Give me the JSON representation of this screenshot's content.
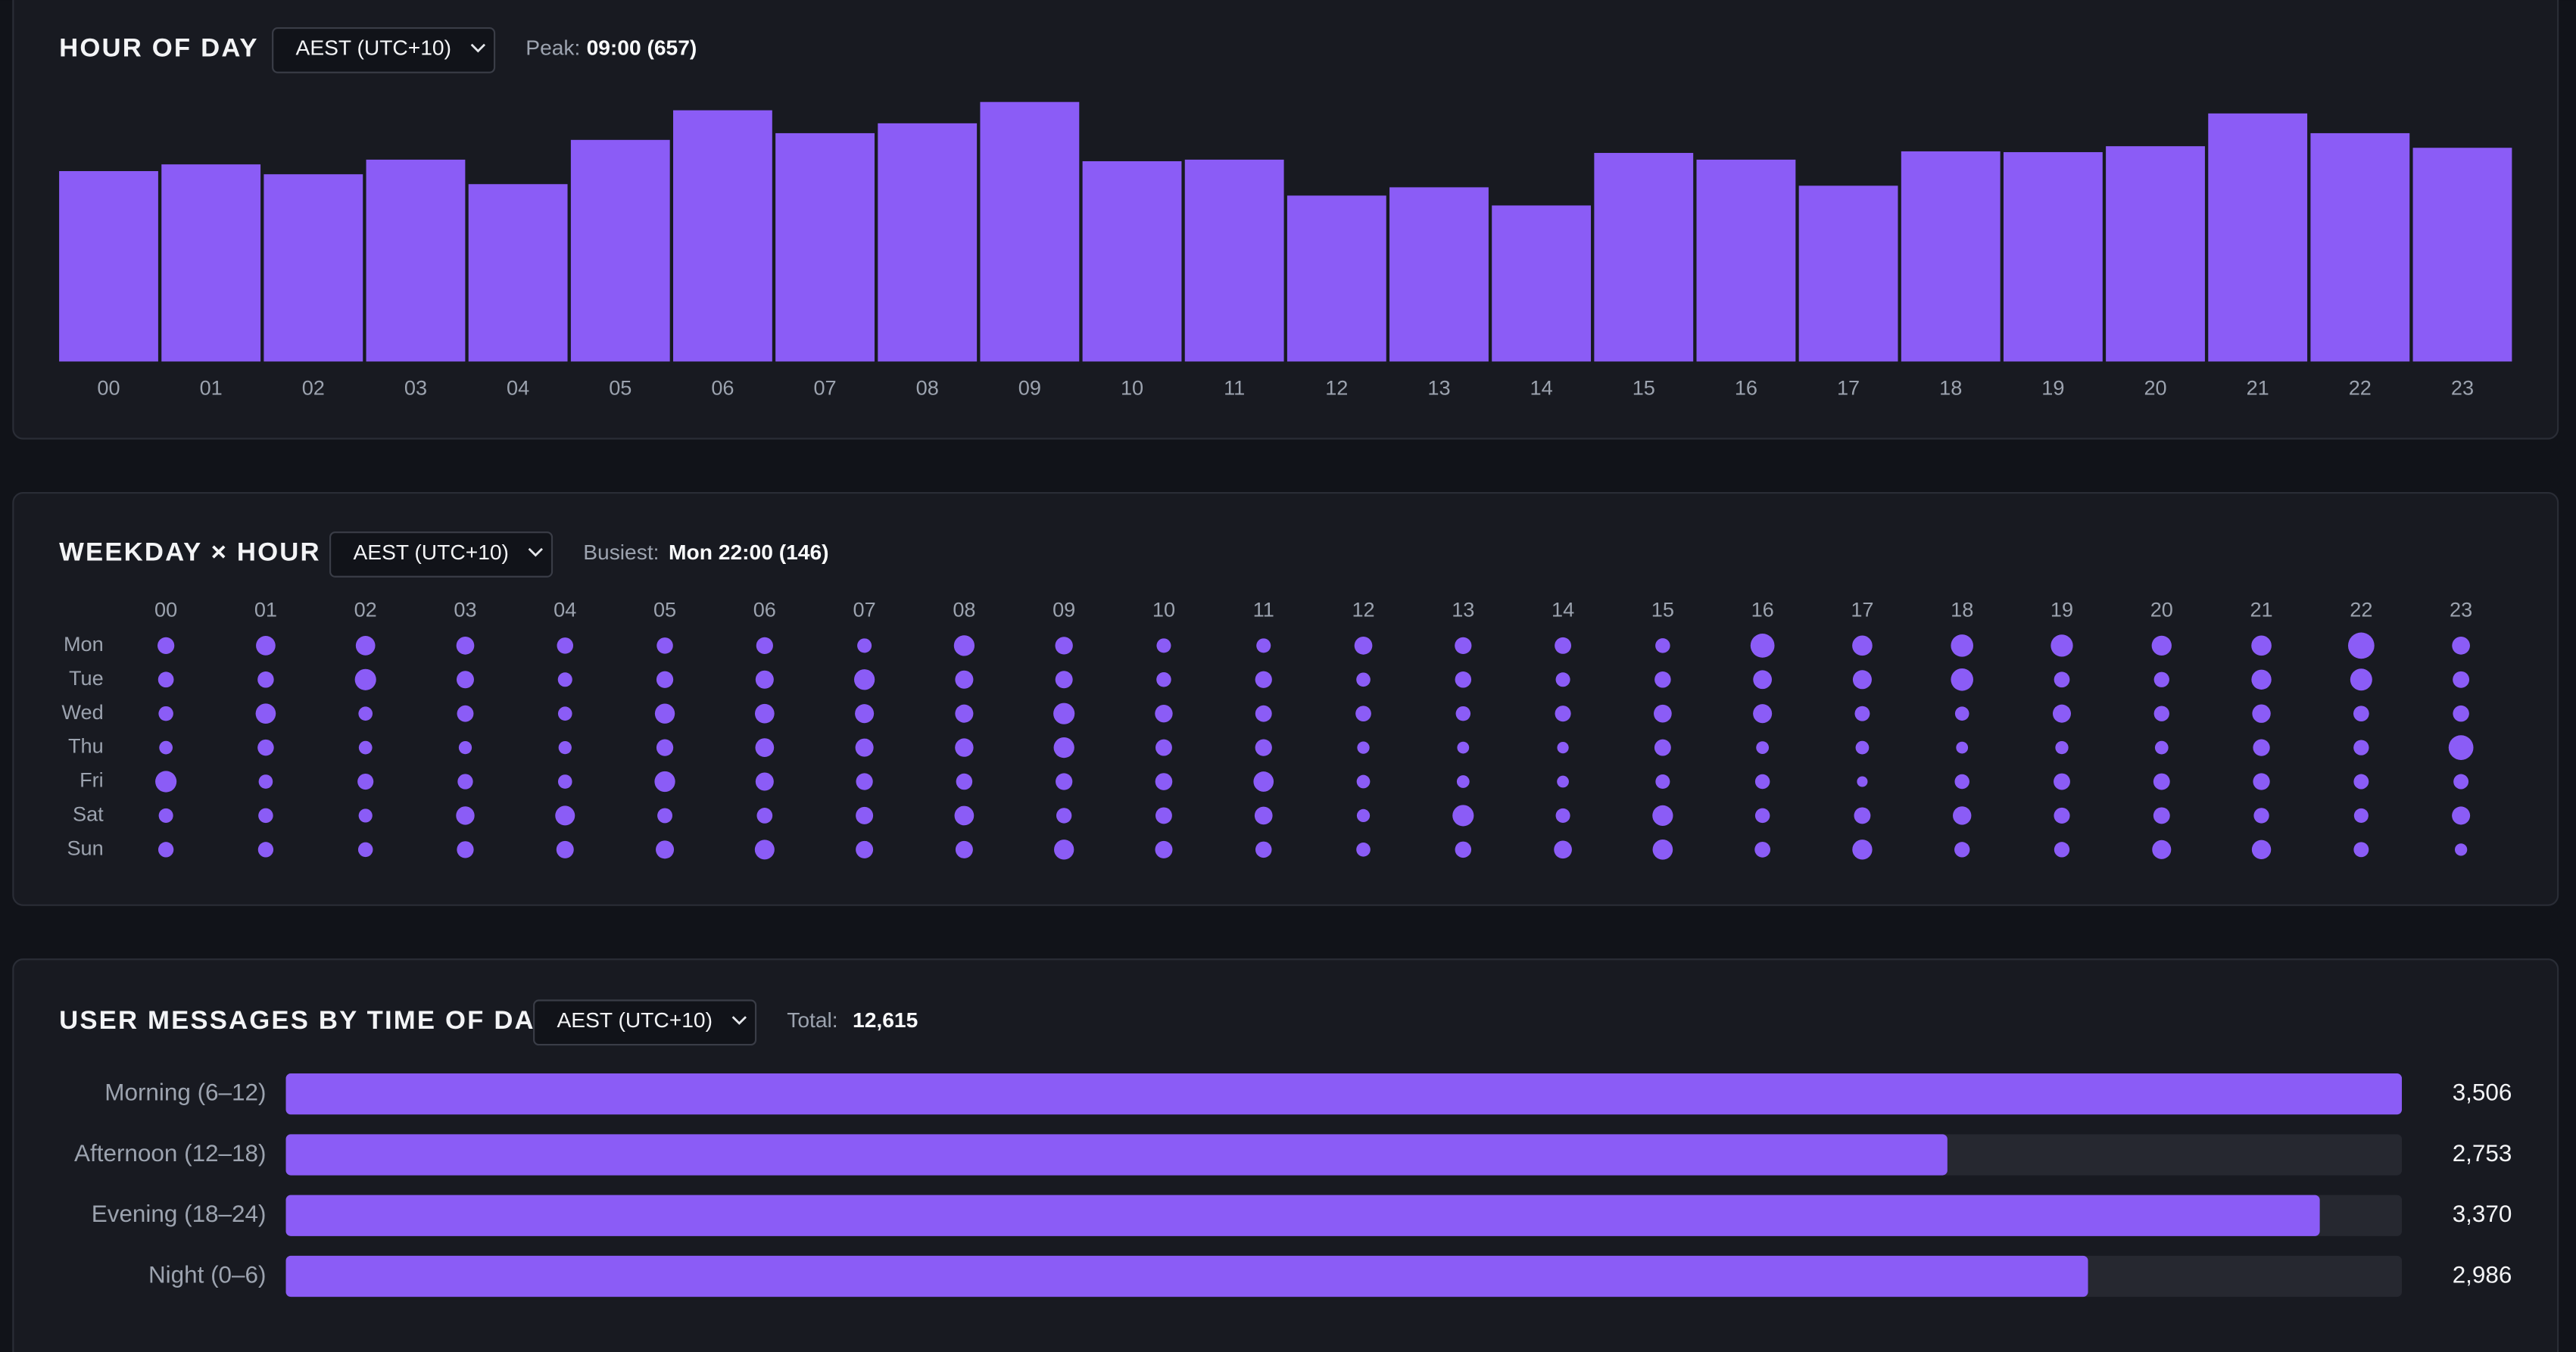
{
  "chart_data": [
    {
      "type": "bar",
      "title": "HOUR OF DAY",
      "timezone": "AEST (UTC+10)",
      "summary_label": "Peak:",
      "summary_value": "09:00 (657)",
      "categories": [
        "00",
        "01",
        "02",
        "03",
        "04",
        "05",
        "06",
        "07",
        "08",
        "09",
        "10",
        "11",
        "12",
        "13",
        "14",
        "15",
        "16",
        "17",
        "18",
        "19",
        "20",
        "21",
        "22",
        "23"
      ],
      "values": [
        482,
        499,
        474,
        511,
        449,
        561,
        636,
        578,
        603,
        657,
        507,
        511,
        420,
        441,
        395,
        528,
        511,
        445,
        532,
        530,
        545,
        628,
        578,
        541
      ],
      "color": "#8b5cf6"
    },
    {
      "type": "dot-matrix",
      "title": "WEEKDAY × HOUR",
      "timezone": "AEST (UTC+10)",
      "summary_label": "Busiest:",
      "summary_value": "Mon 22:00 (146)",
      "categories": [
        "00",
        "01",
        "02",
        "03",
        "04",
        "05",
        "06",
        "07",
        "08",
        "09",
        "10",
        "11",
        "12",
        "13",
        "14",
        "15",
        "16",
        "17",
        "18",
        "19",
        "20",
        "21",
        "22",
        "23"
      ],
      "color": "#8b5cf6",
      "series": [
        {
          "name": "Mon",
          "values": [
            60,
            80,
            80,
            68,
            56,
            56,
            60,
            44,
            90,
            66,
            44,
            44,
            68,
            60,
            58,
            46,
            122,
            86,
            106,
            104,
            84,
            86,
            146,
            68
          ]
        },
        {
          "name": "Tue",
          "values": [
            52,
            56,
            96,
            64,
            44,
            60,
            70,
            90,
            70,
            64,
            46,
            60,
            42,
            56,
            44,
            56,
            74,
            76,
            106,
            52,
            50,
            84,
            102,
            58
          ]
        },
        {
          "name": "Wed",
          "values": [
            46,
            86,
            42,
            58,
            42,
            84,
            80,
            76,
            70,
            96,
            66,
            58,
            52,
            46,
            54,
            68,
            76,
            48,
            42,
            70,
            50,
            72,
            52,
            56
          ]
        },
        {
          "name": "Thu",
          "values": [
            38,
            56,
            38,
            36,
            36,
            60,
            74,
            70,
            72,
            90,
            58,
            60,
            32,
            30,
            28,
            58,
            34,
            38,
            30,
            36,
            38,
            60,
            50,
            130
          ]
        },
        {
          "name": "Fri",
          "values": [
            96,
            42,
            54,
            50,
            42,
            90,
            70,
            60,
            56,
            60,
            62,
            86,
            38,
            34,
            30,
            44,
            46,
            24,
            46,
            58,
            58,
            60,
            48,
            48
          ]
        },
        {
          "name": "Sat",
          "values": [
            44,
            46,
            40,
            72,
            82,
            48,
            52,
            64,
            80,
            50,
            58,
            68,
            36,
            96,
            44,
            90,
            46,
            58,
            72,
            54,
            58,
            50,
            44,
            70
          ]
        },
        {
          "name": "Sun",
          "values": [
            50,
            50,
            46,
            60,
            64,
            70,
            82,
            64,
            64,
            84,
            64,
            56,
            42,
            56,
            68,
            86,
            52,
            84,
            50,
            50,
            76,
            78,
            48,
            32
          ]
        }
      ]
    },
    {
      "type": "hbar",
      "title": "USER MESSAGES BY TIME OF DAY",
      "timezone": "AEST (UTC+10)",
      "summary_label": "Total:",
      "summary_value": "12,615",
      "categories": [
        "Morning (6–12)",
        "Afternoon (12–18)",
        "Evening (18–24)",
        "Night (0–6)"
      ],
      "values": [
        3506,
        2753,
        3370,
        2986
      ],
      "value_labels": [
        "3,506",
        "2,753",
        "3,370",
        "2,986"
      ],
      "color": "#8b5cf6"
    }
  ]
}
